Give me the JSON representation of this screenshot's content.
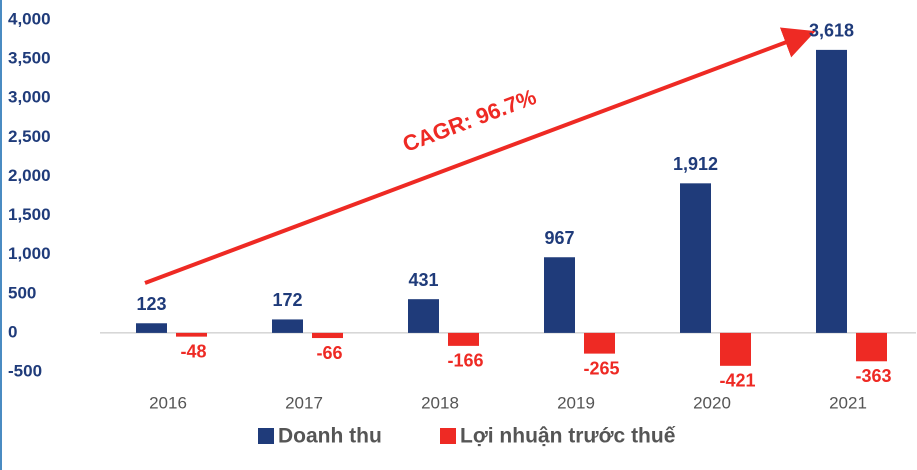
{
  "chart_data": {
    "type": "bar",
    "categories": [
      "2016",
      "2017",
      "2018",
      "2019",
      "2020",
      "2021"
    ],
    "series": [
      {
        "name": "Doanh thu",
        "color": "#1f3b7a",
        "values": [
          123,
          172,
          431,
          967,
          1912,
          3618
        ],
        "value_labels": [
          "123",
          "172",
          "431",
          "967",
          "1,912",
          "3,618"
        ]
      },
      {
        "name": "Lợi nhuận trước thuế",
        "color": "#ee2a24",
        "values": [
          -48,
          -66,
          -166,
          -265,
          -421,
          -363
        ]
      }
    ],
    "ylim": [
      -500,
      4000
    ],
    "yticks": [
      -500,
      0,
      500,
      {
        "value": 1000,
        "label": "1,000"
      },
      {
        "value": 1500,
        "label": "1,500"
      },
      {
        "value": 2000,
        "label": "2,000"
      },
      {
        "value": 2500,
        "label": "2,500"
      },
      {
        "value": 3000,
        "label": "3,000"
      },
      {
        "value": 3500,
        "label": "3,500"
      },
      {
        "value": 4000,
        "label": "4,000"
      }
    ],
    "grid": false,
    "annotation": "CAGR: 96.7%",
    "legend": "bottom"
  }
}
